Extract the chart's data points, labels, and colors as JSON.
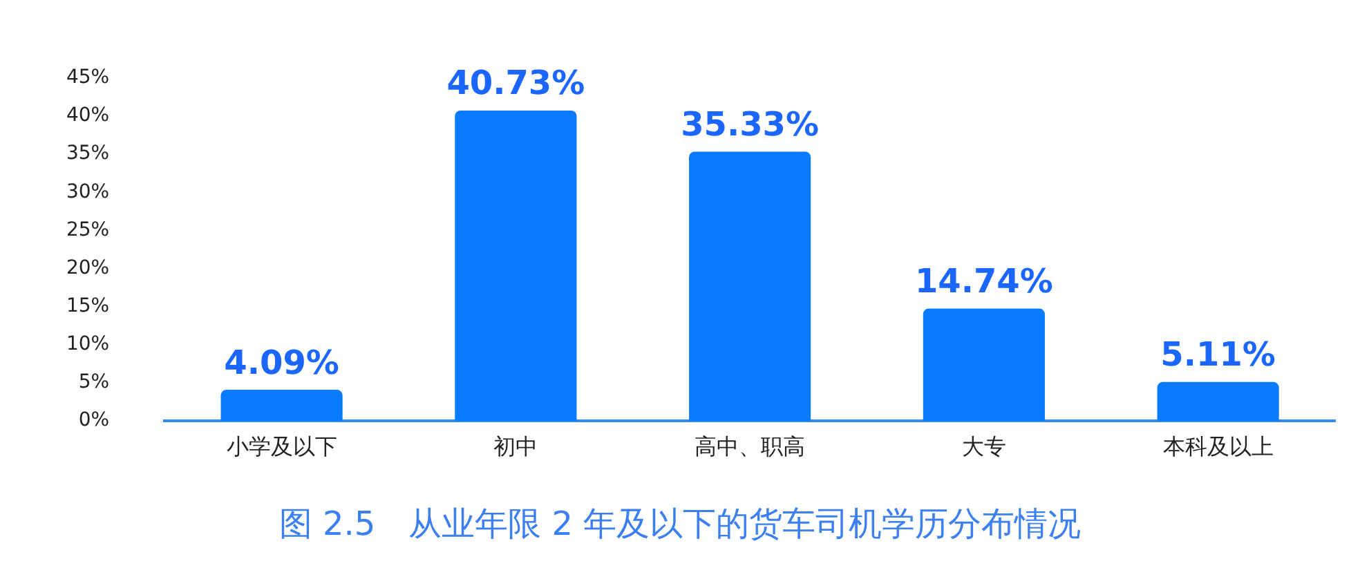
{
  "chart_data": {
    "type": "bar",
    "title": "图 2.5　从业年限 2 年及以下的货车司机学历分布情况",
    "categories": [
      "小学及以下",
      "初中",
      "高中、职高",
      "大专",
      "本科及以上"
    ],
    "values": [
      4.09,
      40.73,
      35.33,
      14.74,
      5.11
    ],
    "value_labels": [
      "4.09%",
      "40.73%",
      "35.33%",
      "14.74%",
      "5.11%"
    ],
    "color": "#0a7bff",
    "ylim": [
      0,
      45
    ],
    "yticks": [
      {
        "value": 0,
        "label": "0%"
      },
      {
        "value": 5,
        "label": "5%"
      },
      {
        "value": 10,
        "label": "10%"
      },
      {
        "value": 15,
        "label": "15%"
      },
      {
        "value": 20,
        "label": "20%"
      },
      {
        "value": 25,
        "label": "25%"
      },
      {
        "value": 30,
        "label": "30%"
      },
      {
        "value": 35,
        "label": "35%"
      },
      {
        "value": 40,
        "label": "40%"
      },
      {
        "value": 45,
        "label": "45%"
      }
    ],
    "grid": false
  }
}
